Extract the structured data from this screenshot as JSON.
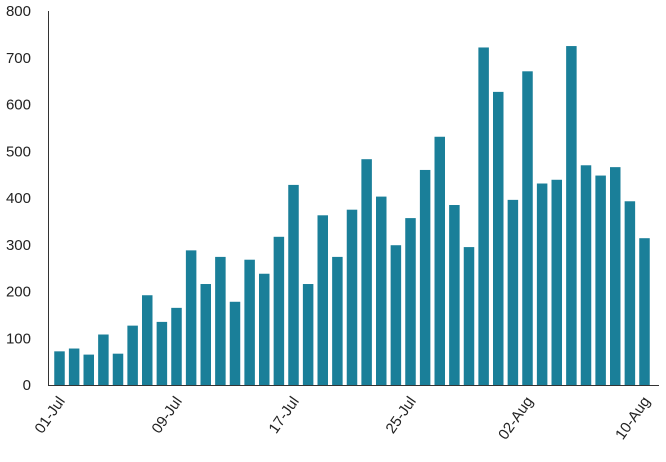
{
  "chart_data": {
    "type": "bar",
    "title": "",
    "xlabel": "",
    "ylabel": "",
    "ylim": [
      0,
      800
    ],
    "yticks": [
      0,
      100,
      200,
      300,
      400,
      500,
      600,
      700,
      800
    ],
    "bar_color": "#1a7f99",
    "grid": false,
    "legend": "none",
    "categories": [
      "01-Jul",
      "02-Jul",
      "03-Jul",
      "04-Jul",
      "05-Jul",
      "06-Jul",
      "07-Jul",
      "08-Jul",
      "09-Jul",
      "10-Jul",
      "11-Jul",
      "12-Jul",
      "13-Jul",
      "14-Jul",
      "15-Jul",
      "16-Jul",
      "17-Jul",
      "18-Jul",
      "19-Jul",
      "20-Jul",
      "21-Jul",
      "22-Jul",
      "23-Jul",
      "24-Jul",
      "25-Jul",
      "26-Jul",
      "27-Jul",
      "28-Jul",
      "29-Jul",
      "30-Jul",
      "31-Jul",
      "01-Aug",
      "02-Aug",
      "03-Aug",
      "04-Aug",
      "05-Aug",
      "06-Aug",
      "07-Aug",
      "08-Aug",
      "09-Aug",
      "10-Aug"
    ],
    "values": [
      72,
      78,
      65,
      108,
      67,
      127,
      192,
      135,
      165,
      288,
      216,
      274,
      178,
      268,
      238,
      317,
      428,
      216,
      363,
      274,
      375,
      483,
      403,
      299,
      357,
      460,
      531,
      385,
      295,
      722,
      627,
      396,
      671,
      431,
      439,
      725,
      470,
      448,
      466,
      393,
      314
    ],
    "x_tick_labels": [
      "01-Jul",
      "09-Jul",
      "17-Jul",
      "25-Jul",
      "02-Aug",
      "10-Aug"
    ],
    "x_tick_indices": [
      0,
      8,
      16,
      24,
      32,
      40
    ]
  }
}
